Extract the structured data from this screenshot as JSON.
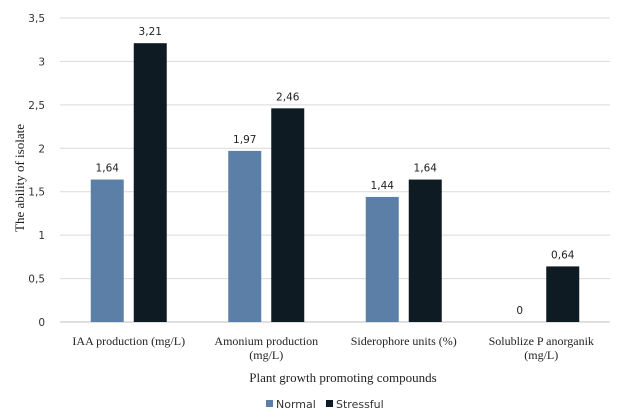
{
  "chart_data": {
    "type": "bar",
    "categories": [
      [
        "IAA production (mg/L)"
      ],
      [
        "Amonium production",
        "(mg/L)"
      ],
      [
        "Siderophore units (%)"
      ],
      [
        "Solublize P anorganik",
        "(mg/L)"
      ]
    ],
    "series": [
      {
        "name": "Normal",
        "color": "#5b7fa6",
        "values": [
          1.64,
          1.97,
          1.44,
          0
        ],
        "labels": [
          "1,64",
          "1,97",
          "1,44",
          "0"
        ]
      },
      {
        "name": "Stressful",
        "color": "#0f1b22",
        "values": [
          3.21,
          2.46,
          1.64,
          0.64
        ],
        "labels": [
          "3,21",
          "2,46",
          "1,64",
          "0,64"
        ]
      }
    ],
    "xlabel": "Plant growth promoting compounds",
    "ylabel": "The ability of isolate",
    "ylim": [
      0,
      3.5
    ],
    "yticks": [
      {
        "value": 0,
        "label": "0"
      },
      {
        "value": 0.5,
        "label": "0,5"
      },
      {
        "value": 1,
        "label": "1"
      },
      {
        "value": 1.5,
        "label": "1,5"
      },
      {
        "value": 2,
        "label": "2"
      },
      {
        "value": 2.5,
        "label": "2,5"
      },
      {
        "value": 3,
        "label": "3"
      },
      {
        "value": 3.5,
        "label": "3,5"
      }
    ],
    "grid": true,
    "legend_position": "bottom-center",
    "colors": {
      "grid": "#d9d9d9",
      "axis": "#bfbfbf"
    }
  }
}
